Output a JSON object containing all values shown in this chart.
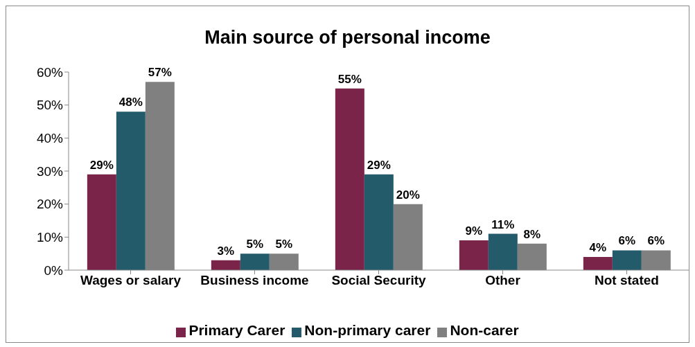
{
  "chart_data": {
    "type": "bar",
    "title": "Main source of personal income",
    "categories": [
      "Wages or salary",
      "Business income",
      "Social Security",
      "Other",
      "Not stated"
    ],
    "series": [
      {
        "name": "Primary Carer",
        "color": "#7b2449",
        "values": [
          29,
          3,
          55,
          9,
          4
        ],
        "value_labels": [
          "29%",
          "3%",
          "55%",
          "9%",
          "4%"
        ]
      },
      {
        "name": "Non-primary carer",
        "color": "#245b6b",
        "values": [
          48,
          5,
          29,
          11,
          6
        ],
        "value_labels": [
          "48%",
          "5%",
          "29%",
          "11%",
          "6%"
        ]
      },
      {
        "name": "Non-carer",
        "color": "#808080",
        "values": [
          57,
          5,
          20,
          8,
          6
        ],
        "value_labels": [
          "57%",
          "5%",
          "20%",
          "8%",
          "6%"
        ]
      }
    ],
    "ylim": [
      0,
      60
    ],
    "yticks": [
      {
        "value": 0,
        "label": "0%"
      },
      {
        "value": 10,
        "label": "10%"
      },
      {
        "value": 20,
        "label": "20%"
      },
      {
        "value": 30,
        "label": "30%"
      },
      {
        "value": 40,
        "label": "40%"
      },
      {
        "value": 50,
        "label": "50%"
      },
      {
        "value": 60,
        "label": "60%"
      }
    ],
    "grid": false,
    "legend": "bottom"
  }
}
